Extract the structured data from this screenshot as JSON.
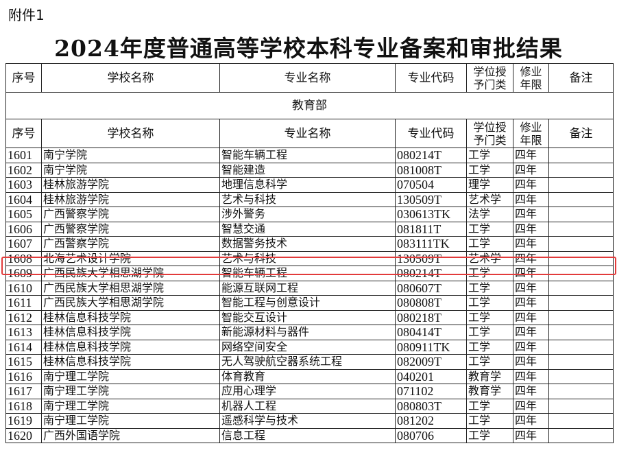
{
  "attachment_label": "附件1",
  "title": "2024年度普通高等学校本科专业备案和审批结果",
  "headers": [
    "序号",
    "学校名称",
    "专业名称",
    "专业代码",
    "学位授予门类",
    "修业年限",
    "备注"
  ],
  "department": "教育部",
  "highlight_color": "#e23b3b",
  "rows": [
    [
      "1601",
      "南宁学院",
      "智能车辆工程",
      "080214T",
      "工学",
      "四年",
      ""
    ],
    [
      "1602",
      "南宁学院",
      "智能建造",
      "081008T",
      "工学",
      "四年",
      ""
    ],
    [
      "1603",
      "桂林旅游学院",
      "地理信息科学",
      "070504",
      "理学",
      "四年",
      ""
    ],
    [
      "1604",
      "桂林旅游学院",
      "艺术与科技",
      "130509T",
      "艺术学",
      "四年",
      ""
    ],
    [
      "1605",
      "广西警察学院",
      "涉外警务",
      "030613TK",
      "法学",
      "四年",
      ""
    ],
    [
      "1606",
      "广西警察学院",
      "智慧交通",
      "081811T",
      "工学",
      "四年",
      ""
    ],
    [
      "1607",
      "广西警察学院",
      "数据警务技术",
      "083111TK",
      "工学",
      "四年",
      ""
    ],
    [
      "1608",
      "北海艺术设计学院",
      "艺术与科技",
      "130509T",
      "艺术学",
      "四年",
      ""
    ],
    [
      "1609",
      "广西民族大学相思湖学院",
      "智能车辆工程",
      "080214T",
      "工学",
      "四年",
      ""
    ],
    [
      "1610",
      "广西民族大学相思湖学院",
      "能源互联网工程",
      "080607T",
      "工学",
      "四年",
      ""
    ],
    [
      "1611",
      "广西民族大学相思湖学院",
      "智能工程与创意设计",
      "080808T",
      "工学",
      "四年",
      ""
    ],
    [
      "1612",
      "桂林信息科技学院",
      "智能交互设计",
      "080218T",
      "工学",
      "四年",
      ""
    ],
    [
      "1613",
      "桂林信息科技学院",
      "新能源材料与器件",
      "080414T",
      "工学",
      "四年",
      ""
    ],
    [
      "1614",
      "桂林信息科技学院",
      "网络空间安全",
      "080911TK",
      "工学",
      "四年",
      ""
    ],
    [
      "1615",
      "桂林信息科技学院",
      "无人驾驶航空器系统工程",
      "082009T",
      "工学",
      "四年",
      ""
    ],
    [
      "1616",
      "南宁理工学院",
      "体育教育",
      "040201",
      "教育学",
      "四年",
      ""
    ],
    [
      "1617",
      "南宁理工学院",
      "应用心理学",
      "071102",
      "教育学",
      "四年",
      ""
    ],
    [
      "1618",
      "南宁理工学院",
      "机器人工程",
      "080803T",
      "工学",
      "四年",
      ""
    ],
    [
      "1619",
      "南宁理工学院",
      "遥感科学与技术",
      "081202",
      "工学",
      "四年",
      ""
    ],
    [
      "1620",
      "广西外国语学院",
      "信息工程",
      "080706",
      "工学",
      "四年",
      ""
    ]
  ]
}
